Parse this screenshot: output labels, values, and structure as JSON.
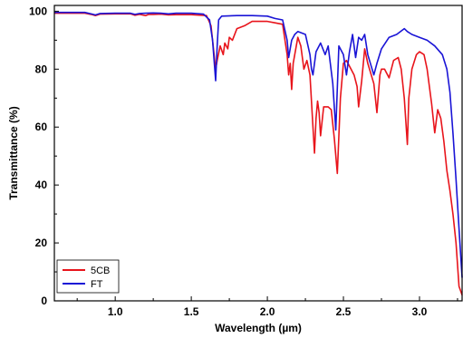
{
  "chart_data": {
    "type": "line",
    "xlabel": "Wavelength (µm)",
    "ylabel": "Transmittance (%)",
    "xlim": [
      0.6,
      3.28
    ],
    "ylim": [
      0,
      102
    ],
    "xticks": [
      1.0,
      1.5,
      2.0,
      2.5,
      3.0
    ],
    "xtick_labels": [
      "1.0",
      "1.5",
      "2.0",
      "2.5",
      "3.0"
    ],
    "yticks": [
      0,
      20,
      40,
      60,
      80,
      100
    ],
    "ytick_labels": [
      "0",
      "20",
      "40",
      "60",
      "80",
      "100"
    ],
    "grid": false,
    "legend_position": "bottom-left",
    "series": [
      {
        "name": "5CB",
        "color": "#e8141b",
        "x": [
          0.6,
          0.8,
          0.85,
          0.87,
          0.9,
          1.0,
          1.1,
          1.13,
          1.16,
          1.2,
          1.22,
          1.25,
          1.3,
          1.35,
          1.4,
          1.5,
          1.6,
          1.63,
          1.66,
          1.67,
          1.69,
          1.71,
          1.72,
          1.74,
          1.75,
          1.77,
          1.8,
          1.85,
          1.9,
          2.0,
          2.05,
          2.1,
          2.13,
          2.14,
          2.15,
          2.16,
          2.17,
          2.2,
          2.22,
          2.24,
          2.26,
          2.28,
          2.3,
          2.31,
          2.32,
          2.33,
          2.34,
          2.35,
          2.37,
          2.4,
          2.42,
          2.44,
          2.46,
          2.48,
          2.5,
          2.52,
          2.55,
          2.57,
          2.59,
          2.6,
          2.62,
          2.64,
          2.66,
          2.7,
          2.72,
          2.74,
          2.75,
          2.77,
          2.8,
          2.83,
          2.86,
          2.88,
          2.9,
          2.92,
          2.93,
          2.95,
          2.98,
          3.0,
          3.03,
          3.05,
          3.08,
          3.1,
          3.12,
          3.14,
          3.16,
          3.18,
          3.2,
          3.22,
          3.24,
          3.26,
          3.28
        ],
        "values": [
          99.3,
          99.3,
          98.8,
          98.5,
          99,
          99.1,
          99.1,
          98.6,
          98.9,
          98.5,
          98.9,
          98.9,
          99,
          98.7,
          98.8,
          98.8,
          98.5,
          95,
          80,
          83,
          88,
          85,
          89,
          87,
          91,
          90,
          94,
          95,
          96.5,
          96.5,
          96,
          95.5,
          85,
          78,
          82,
          73,
          82,
          91,
          88,
          80,
          83,
          78,
          60,
          51,
          63,
          69,
          65,
          57,
          67,
          67,
          66,
          56,
          44,
          70,
          82,
          83,
          80,
          78,
          74,
          67,
          76,
          87,
          82,
          75,
          65,
          78,
          80,
          80,
          77,
          83,
          84,
          80,
          70,
          54,
          70,
          80,
          85,
          86,
          85,
          80,
          68,
          58,
          66,
          63,
          55,
          45,
          38,
          30,
          20,
          5,
          2
        ]
      },
      {
        "name": "FT",
        "color": "#1a14d6",
        "x": [
          0.6,
          0.8,
          0.85,
          0.87,
          0.9,
          1.0,
          1.1,
          1.13,
          1.16,
          1.2,
          1.25,
          1.3,
          1.35,
          1.4,
          1.5,
          1.58,
          1.62,
          1.64,
          1.66,
          1.67,
          1.68,
          1.7,
          1.8,
          1.9,
          2.0,
          2.05,
          2.1,
          2.13,
          2.14,
          2.16,
          2.18,
          2.2,
          2.25,
          2.28,
          2.29,
          2.3,
          2.32,
          2.35,
          2.38,
          2.4,
          2.43,
          2.45,
          2.47,
          2.5,
          2.52,
          2.54,
          2.56,
          2.58,
          2.6,
          2.62,
          2.64,
          2.66,
          2.7,
          2.72,
          2.75,
          2.8,
          2.85,
          2.9,
          2.92,
          2.95,
          3.0,
          3.05,
          3.1,
          3.15,
          3.18,
          3.2,
          3.22,
          3.24,
          3.26,
          3.28
        ],
        "values": [
          99.6,
          99.6,
          99,
          98.7,
          99.2,
          99.3,
          99.3,
          98.9,
          99.2,
          99.3,
          99.4,
          99.3,
          99.1,
          99.3,
          99.3,
          99,
          97,
          90,
          76,
          88,
          97,
          98.3,
          98.5,
          98.5,
          98.3,
          97.5,
          97,
          90,
          84,
          90,
          92,
          93,
          92,
          85,
          80,
          78,
          86,
          89,
          85,
          88,
          75,
          59,
          88,
          85,
          78,
          86,
          92,
          84,
          91,
          90,
          92,
          85,
          78,
          82,
          87,
          91,
          92,
          94,
          93,
          92,
          91,
          90,
          88,
          85,
          80,
          72,
          58,
          42,
          25,
          8
        ]
      }
    ]
  }
}
